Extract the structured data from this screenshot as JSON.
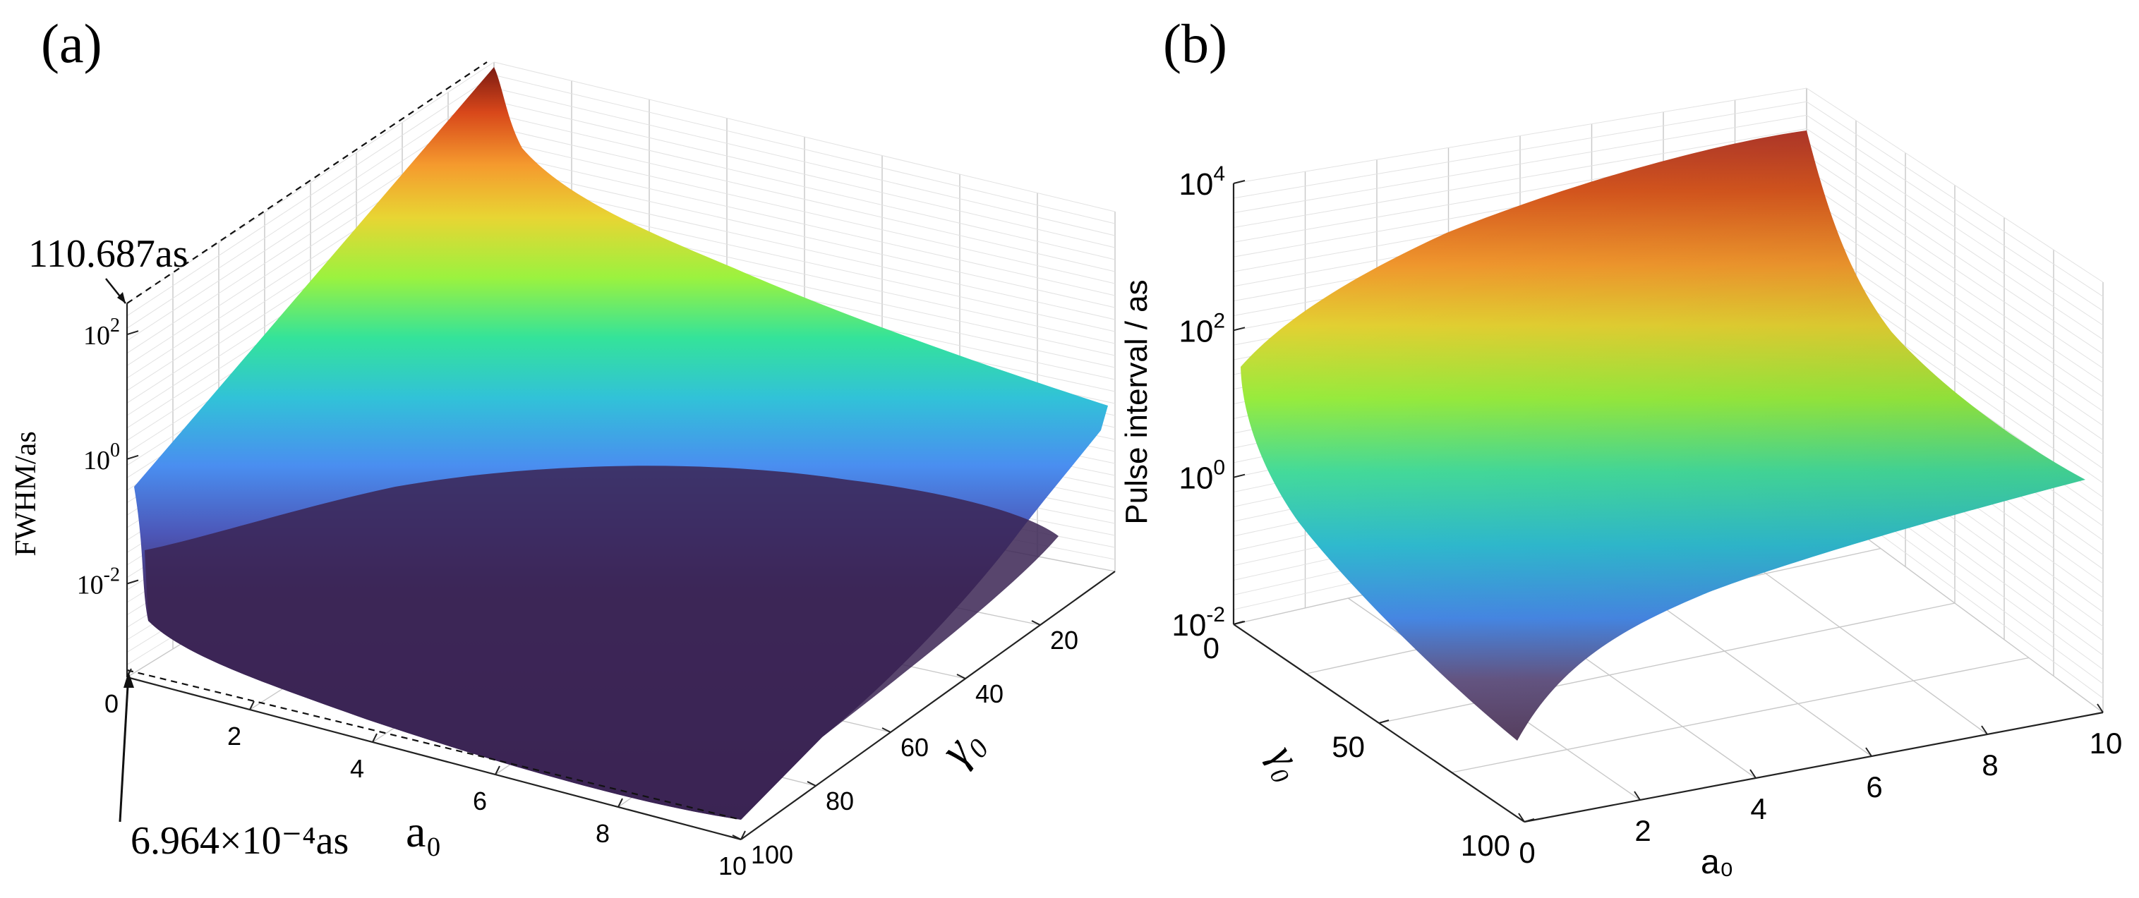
{
  "figure": {
    "panels": [
      "(a)",
      "(b)"
    ],
    "colormap": [
      "#3b2454",
      "#3f4fb4",
      "#4a8ef0",
      "#31c2d8",
      "#34e39a",
      "#9bf23f",
      "#e8d533",
      "#f59a2e",
      "#d8471a",
      "#7a1a12"
    ]
  },
  "chart_data": [
    {
      "panel": "(a)",
      "type": "surface3d",
      "zlabel": "FWHM/as",
      "xlabel": "a₀",
      "ylabel": "γ₀",
      "zscale": "log",
      "zticks": [
        "10−2",
        "10⁰",
        "10²"
      ],
      "xticks": [
        "0",
        "2",
        "4",
        "6",
        "8",
        "10"
      ],
      "yticks": [
        "20",
        "40",
        "60",
        "80",
        "100"
      ],
      "xlim": [
        0,
        10
      ],
      "ylim": [
        0,
        100
      ],
      "zlim_exp": [
        -3.5,
        2.5
      ],
      "annotations": {
        "max": "110.687as",
        "min": "6.964×10⁻⁴as"
      },
      "series": [
        {
          "name": "FWHM",
          "max_value": 110.687,
          "min_value": 0.0006964,
          "description": "decreases with a0 and gamma0"
        }
      ]
    },
    {
      "panel": "(b)",
      "type": "surface3d",
      "zlabel": "Pulse interval / as",
      "xlabel": "a₀",
      "ylabel": "γ₀",
      "zscale": "log",
      "zticks": [
        "10−2",
        "10⁰",
        "10²",
        "10⁴"
      ],
      "xticks": [
        "0",
        "2",
        "4",
        "6",
        "8",
        "10"
      ],
      "yticks": [
        "0",
        "50",
        "100"
      ],
      "xlim": [
        0,
        10
      ],
      "ylim": [
        0,
        100
      ],
      "zlim_exp": [
        -2,
        4
      ]
    }
  ]
}
